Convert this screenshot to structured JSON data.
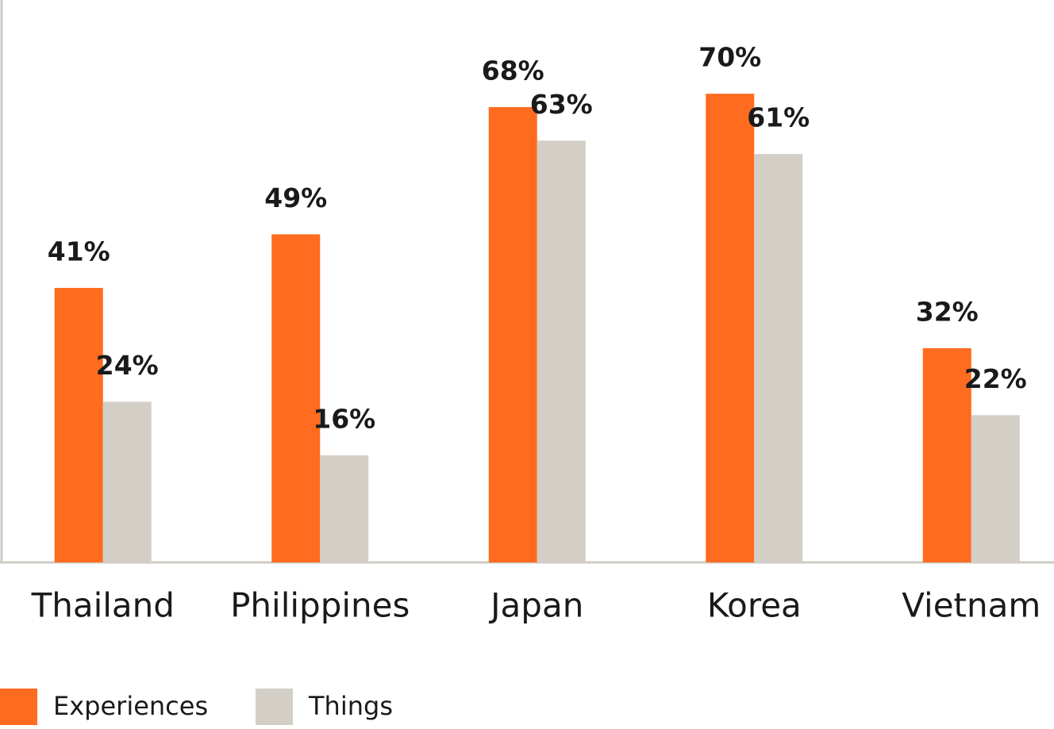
{
  "chart_data": {
    "type": "bar",
    "categories": [
      "Thailand",
      "Philippines",
      "Japan",
      "Korea",
      "Vietnam"
    ],
    "series": [
      {
        "name": "Experiences",
        "color": "#ff6b1f",
        "values": [
          41,
          49,
          68,
          70,
          32
        ],
        "value_labels": [
          "41%",
          "49%",
          "68%",
          "70%",
          "32%"
        ]
      },
      {
        "name": "Things",
        "color": "#d3cfc7",
        "values": [
          24,
          16,
          63,
          61,
          22
        ],
        "value_labels": [
          "24%",
          "16%",
          "63%",
          "61%",
          "22%"
        ]
      }
    ],
    "ylim": [
      0,
      84
    ]
  }
}
